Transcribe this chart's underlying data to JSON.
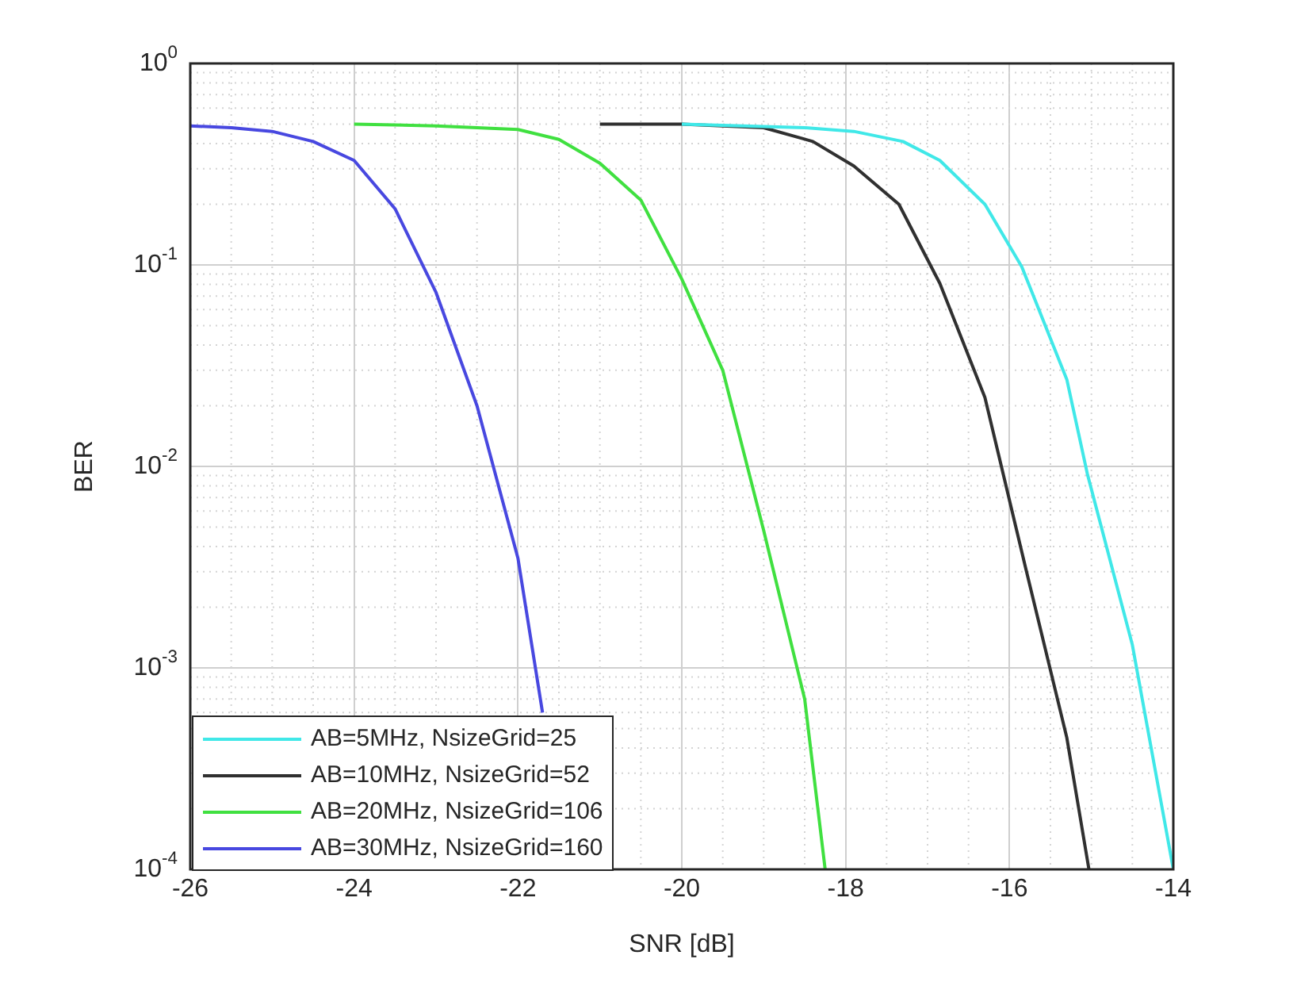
{
  "chart_data": {
    "type": "line",
    "xlabel": "SNR [dB]",
    "ylabel": "BER",
    "log": "y",
    "grid": true,
    "legend": "bottom left",
    "line_style": "solid",
    "marker": "none",
    "xlim": [
      -26,
      -14
    ],
    "xticks": [
      -26,
      -24,
      -22,
      -20,
      -18,
      -16,
      -14
    ],
    "ylim": [
      0.0001,
      1
    ],
    "yticks": [
      {
        "value": 1,
        "label": "10$^{0}$"
      },
      {
        "value": 0.1,
        "label": "10$^{-1}$"
      },
      {
        "value": 0.01,
        "label": "10$^{-2}$"
      },
      {
        "value": 0.001,
        "label": "10$^{-3}$"
      },
      {
        "value": 0.0001,
        "label": "10$^{-4}$"
      }
    ],
    "series": [
      {
        "name": "AB=5MHz, NsizeGrid=25",
        "color": "#40e8e8",
        "x": [
          -20,
          -18.5,
          -17.9,
          -17.3,
          -16.85,
          -16.3,
          -15.85,
          -15.3,
          -15.05,
          -14.5,
          -14
        ],
        "values": [
          0.5,
          0.48,
          0.46,
          0.41,
          0.33,
          0.2,
          0.098,
          0.027,
          0.0092,
          0.0013,
          0.0001
        ]
      },
      {
        "name": "AB=10MHz, NsizeGrid=52",
        "color": "#303030",
        "x": [
          -21,
          -20,
          -19.5,
          -19,
          -18.4,
          -17.9,
          -17.35,
          -16.85,
          -16.3,
          -15.8,
          -15.3,
          -15.03
        ],
        "values": [
          0.5,
          0.5,
          0.49,
          0.48,
          0.41,
          0.31,
          0.2,
          0.081,
          0.022,
          0.0031,
          0.00045,
          0.0001
        ]
      },
      {
        "name": "AB=20MHz, NsizeGrid=106",
        "color": "#40e040",
        "x": [
          -24,
          -23,
          -22,
          -21.5,
          -21,
          -20.5,
          -20,
          -19.5,
          -19,
          -18.5,
          -18.25
        ],
        "values": [
          0.5,
          0.49,
          0.47,
          0.42,
          0.32,
          0.21,
          0.085,
          0.03,
          0.0048,
          0.0007,
          0.0001
        ]
      },
      {
        "name": "AB=30MHz, NsizeGrid=160",
        "color": "#4848e0",
        "x": [
          -26,
          -25.5,
          -25,
          -24.5,
          -24,
          -23.5,
          -23,
          -22.5,
          -22,
          -21.7
        ],
        "values": [
          0.49,
          0.48,
          0.46,
          0.41,
          0.33,
          0.19,
          0.073,
          0.02,
          0.0035,
          0.0006
        ]
      }
    ]
  }
}
